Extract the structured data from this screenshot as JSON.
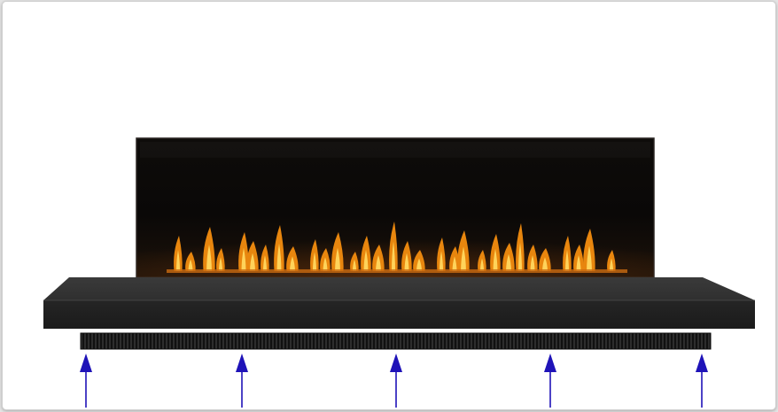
{
  "colors": {
    "background": "#ffffff",
    "glass_panel": "#0b0908",
    "hearth": "#2b2b2b",
    "vent_grille": "#1a1a1a",
    "flame_outer": "#e8860e",
    "flame_inner": "#ffd35a",
    "arrow": "#1f13b8"
  },
  "diagram": {
    "description_items": [
      {
        "part": "fireplace-glass-panel"
      },
      {
        "part": "flame-row"
      },
      {
        "part": "hearth-ledge"
      },
      {
        "part": "vent-grille"
      },
      {
        "part": "airflow-arrows",
        "count": 5
      }
    ]
  }
}
